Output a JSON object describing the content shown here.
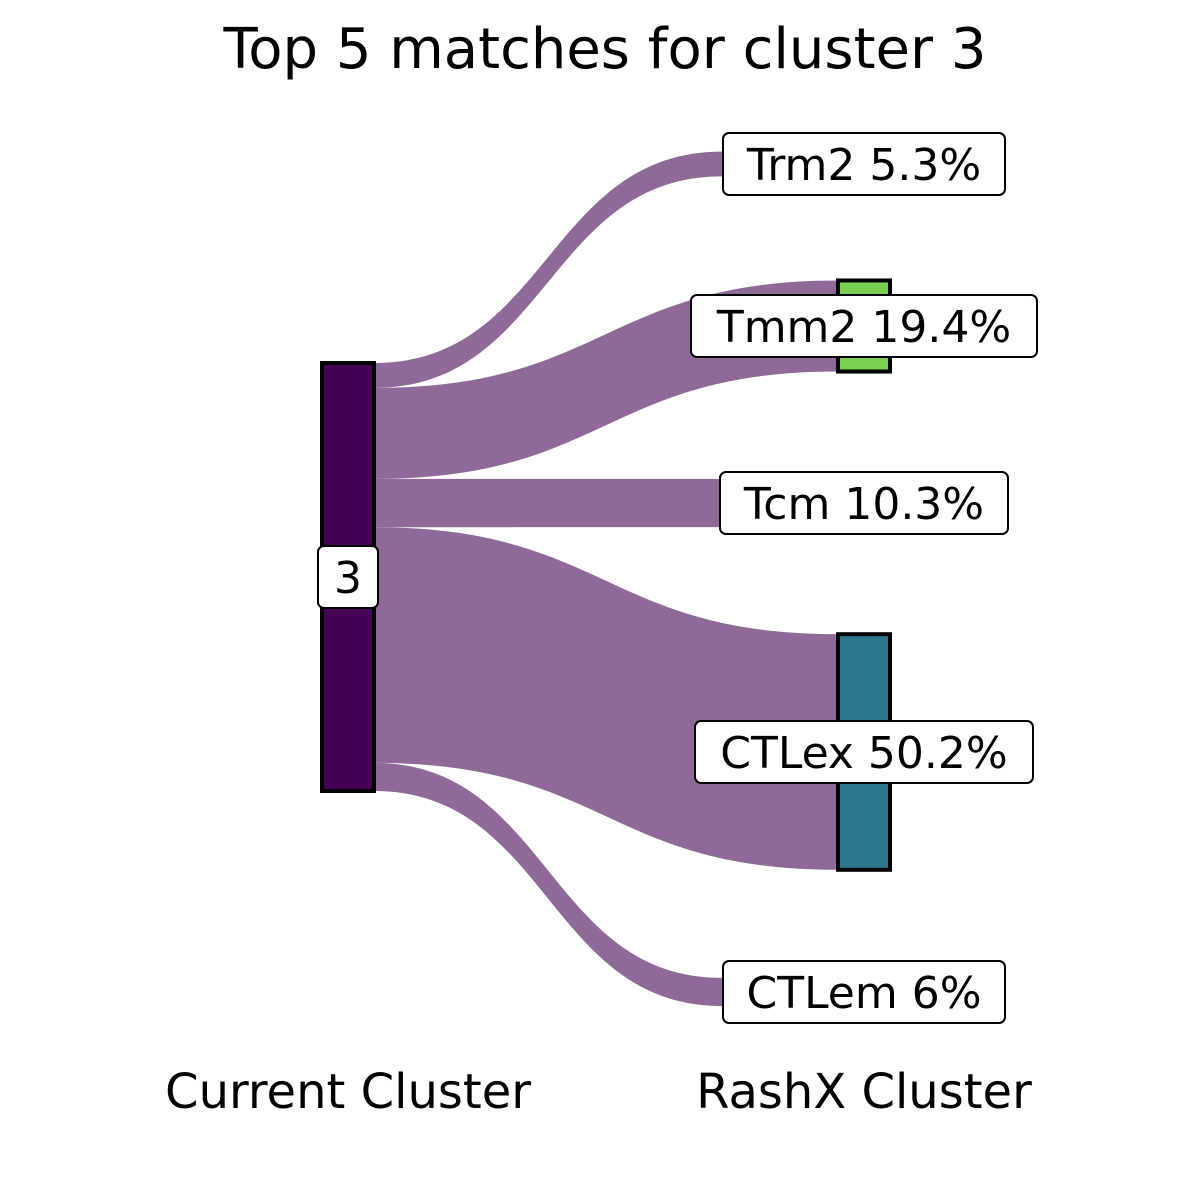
{
  "chart_data": {
    "type": "sankey",
    "title": "Top 5 matches for cluster 3",
    "xlabels": [
      "Current Cluster",
      "RashX Cluster"
    ],
    "source": {
      "name": "3",
      "color": "#440154"
    },
    "flow_color": "#8F6A99",
    "targets": [
      {
        "name": "Trm2",
        "percent": 5.3,
        "label": "Trm2 5.3%",
        "color": null
      },
      {
        "name": "Tmm2",
        "percent": 19.4,
        "label": "Tmm2 19.4%",
        "color": "#7AD151"
      },
      {
        "name": "Tcm",
        "percent": 10.3,
        "label": "Tcm 10.3%",
        "color": null
      },
      {
        "name": "CTLex",
        "percent": 50.2,
        "label": "CTLex 50.2%",
        "color": "#2A788E"
      },
      {
        "name": "CTLem",
        "percent": 6,
        "label": "CTLem 6%",
        "color": null
      }
    ]
  }
}
